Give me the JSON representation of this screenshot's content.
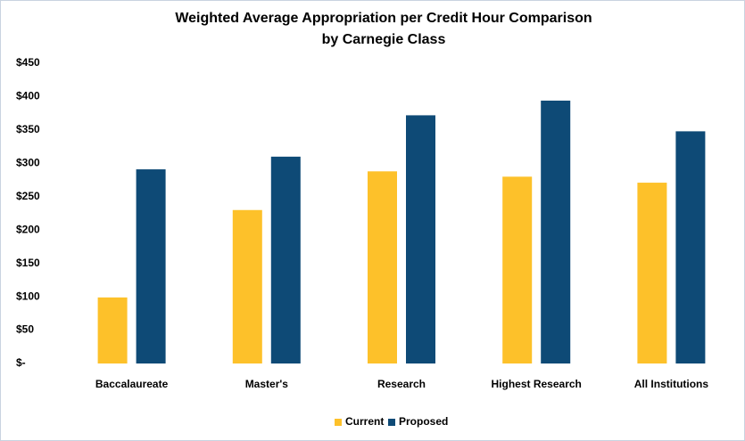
{
  "chart_data": {
    "type": "bar",
    "title": [
      "Weighted Average Appropriation per Credit Hour Comparison",
      "by Carnegie Class"
    ],
    "categories": [
      "Baccalaureate",
      "Master's",
      "Research",
      "Highest Research",
      "All Institutions"
    ],
    "series": [
      {
        "name": "Current",
        "color": "#fdc12a",
        "values": [
          99,
          230,
          288,
          280,
          271
        ]
      },
      {
        "name": "Proposed",
        "color": "#0e4a76",
        "values": [
          291,
          310,
          372,
          394,
          348
        ]
      }
    ],
    "ylim": [
      0,
      450
    ],
    "yticks": [
      {
        "value": 0,
        "label": "$-"
      },
      {
        "value": 50,
        "label": "$50"
      },
      {
        "value": 100,
        "label": "$100"
      },
      {
        "value": 150,
        "label": "$150"
      },
      {
        "value": 200,
        "label": "$200"
      },
      {
        "value": 250,
        "label": "$250"
      },
      {
        "value": 300,
        "label": "$300"
      },
      {
        "value": 350,
        "label": "$350"
      },
      {
        "value": 400,
        "label": "$400"
      },
      {
        "value": 450,
        "label": "$450"
      }
    ],
    "grid": false,
    "legend": "bottom"
  }
}
